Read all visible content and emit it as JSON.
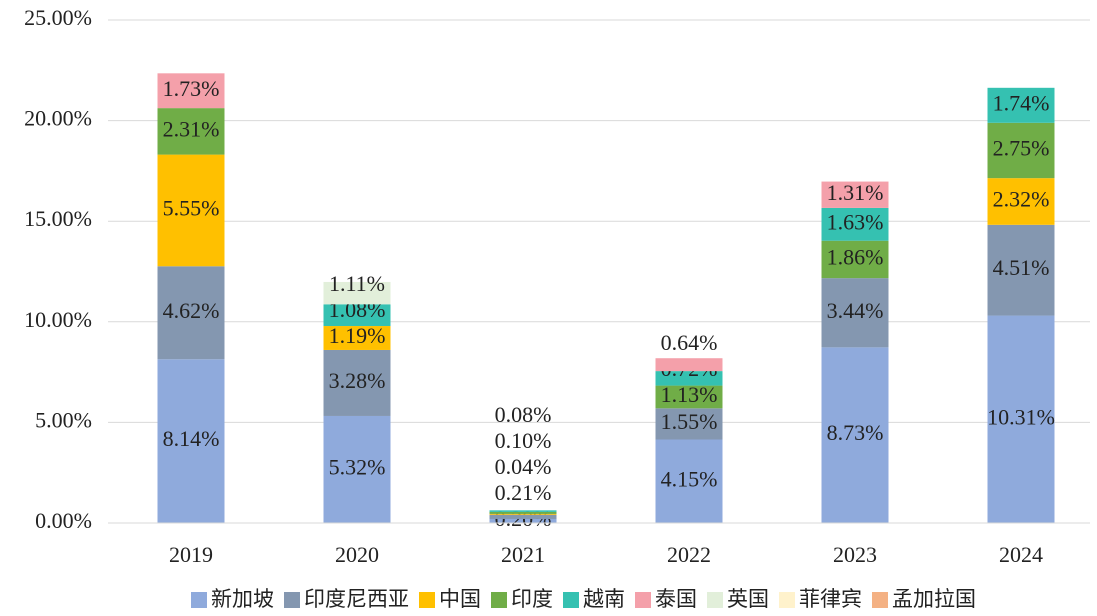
{
  "chart_data": {
    "type": "bar",
    "stacked": true,
    "categories": [
      "2019",
      "2020",
      "2021",
      "2022",
      "2023",
      "2024"
    ],
    "series": [
      {
        "name": "新加坡",
        "color": "#8faadc",
        "values": [
          8.14,
          5.32,
          0.2,
          4.15,
          8.73,
          10.31
        ],
        "value_labels": [
          "8.14%",
          "5.32%",
          "0.20%",
          "4.15%",
          "8.73%",
          "10.31%"
        ]
      },
      {
        "name": "印度尼西亚",
        "color": "#8497b0",
        "values": [
          4.62,
          3.28,
          0.21,
          1.55,
          3.44,
          4.51
        ],
        "value_labels": [
          "4.62%",
          "3.28%",
          "0.21%",
          "1.55%",
          "3.44%",
          "4.51%"
        ]
      },
      {
        "name": "中国",
        "color": "#ffc000",
        "values": [
          5.55,
          1.19,
          0.04,
          null,
          null,
          2.32
        ],
        "value_labels": [
          "5.55%",
          "1.19%",
          "0.04%",
          null,
          null,
          "2.32%"
        ]
      },
      {
        "name": "印度",
        "color": "#70ad47",
        "values": [
          2.31,
          null,
          0.1,
          1.13,
          1.86,
          2.75
        ],
        "value_labels": [
          "2.31%",
          null,
          "0.10%",
          "1.13%",
          "1.86%",
          "2.75%"
        ]
      },
      {
        "name": "越南",
        "color": "#35c1b1",
        "values": [
          null,
          1.08,
          0.08,
          0.72,
          1.63,
          1.74
        ],
        "value_labels": [
          null,
          "1.08%",
          "0.08%",
          "0.72%",
          "1.63%",
          "1.74%"
        ]
      },
      {
        "name": "泰国",
        "color": "#f4a0aa",
        "values": [
          1.73,
          null,
          null,
          0.64,
          1.31,
          null
        ],
        "value_labels": [
          "1.73%",
          null,
          null,
          "0.64%",
          "1.31%",
          null
        ]
      },
      {
        "name": "英国",
        "color": "#e2efda",
        "values": [
          null,
          1.11,
          null,
          null,
          null,
          null
        ],
        "value_labels": [
          null,
          "1.11%",
          null,
          null,
          null,
          null
        ]
      },
      {
        "name": "菲律宾",
        "color": "#fff2cc",
        "values": [
          null,
          null,
          null,
          null,
          null,
          null
        ]
      },
      {
        "name": "孟加拉国",
        "color": "#f4b183",
        "values": [
          null,
          null,
          null,
          null,
          null,
          null
        ]
      }
    ],
    "ylim": [
      0,
      25
    ],
    "yticks": [
      {
        "value": 0,
        "label": "0.00%"
      },
      {
        "value": 5,
        "label": "5.00%"
      },
      {
        "value": 10,
        "label": "10.00%"
      },
      {
        "value": 15,
        "label": "15.00%"
      },
      {
        "value": 20,
        "label": "20.00%"
      },
      {
        "value": 25,
        "label": "25.00%"
      }
    ],
    "grid": true,
    "legend": "bottom"
  }
}
